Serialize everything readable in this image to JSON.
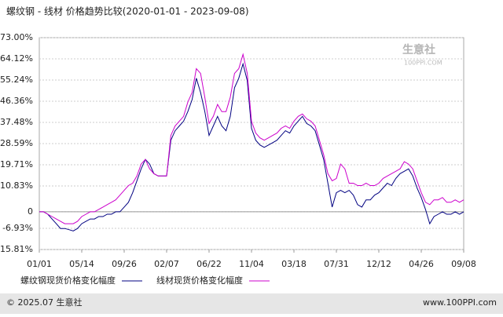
{
  "chart_data": {
    "type": "line",
    "title": "螺纹钢 - 线材 价格趋势比较(2020-01-01 - 2023-09-08)",
    "watermark": "生意社",
    "watermark_sub": "100PPI.COM",
    "footer_left": "© 2025.07 生意社",
    "footer_right": "www.100PPI.com",
    "categories": [
      "01/01",
      null,
      null,
      null,
      null,
      null,
      null,
      null,
      null,
      null,
      "05/14",
      null,
      null,
      null,
      null,
      null,
      null,
      null,
      null,
      null,
      "09/26",
      null,
      null,
      null,
      null,
      null,
      null,
      null,
      null,
      null,
      "02/07",
      null,
      null,
      null,
      null,
      null,
      null,
      null,
      null,
      null,
      "06/22",
      null,
      null,
      null,
      null,
      null,
      null,
      null,
      null,
      null,
      "11/04",
      null,
      null,
      null,
      null,
      null,
      null,
      null,
      null,
      null,
      "03/18",
      null,
      null,
      null,
      null,
      null,
      null,
      null,
      null,
      null,
      "07/31",
      null,
      null,
      null,
      null,
      null,
      null,
      null,
      null,
      null,
      "12/12",
      null,
      null,
      null,
      null,
      null,
      null,
      null,
      null,
      null,
      "04/26",
      null,
      null,
      null,
      null,
      null,
      null,
      null,
      null,
      null,
      "09/08"
    ],
    "series": [
      {
        "name": "螺纹钢现货价格变化幅度",
        "color": "#000080",
        "values": [
          0,
          0,
          -1,
          -3,
          -5,
          -7,
          -7,
          -7.5,
          -8,
          -7,
          -5,
          -4,
          -3,
          -3,
          -2,
          -2,
          -1,
          -1,
          0,
          0,
          2,
          4,
          8,
          13,
          18,
          22,
          20,
          16,
          15,
          15,
          15,
          30,
          34,
          36,
          38,
          42,
          47,
          56,
          50,
          42,
          32,
          36,
          40,
          36,
          34,
          40,
          52,
          56,
          62,
          55,
          35,
          30,
          28,
          27,
          28,
          29,
          30,
          32,
          34,
          33,
          36,
          38,
          40,
          37,
          36,
          34,
          28,
          22,
          12,
          2,
          8,
          9,
          8,
          9,
          7,
          3,
          2,
          5,
          5,
          7,
          8,
          10,
          12,
          11,
          14,
          16,
          17,
          18,
          15,
          10,
          6,
          1,
          -5,
          -2,
          -1,
          0,
          -1,
          -1,
          0,
          -1,
          0
        ]
      },
      {
        "name": "线材现货价格变化幅度",
        "color": "#cc00cc",
        "values": [
          0,
          0,
          -1,
          -2,
          -3,
          -4,
          -5,
          -5,
          -5,
          -4,
          -2,
          -1,
          0,
          0,
          1,
          2,
          3,
          4,
          5,
          7,
          9,
          11,
          12,
          15,
          20,
          22,
          18,
          16,
          15,
          15,
          15,
          32,
          36,
          38,
          40,
          46,
          50,
          60,
          58,
          48,
          37,
          40,
          45,
          42,
          42,
          48,
          58,
          60,
          66,
          58,
          38,
          33,
          31,
          30,
          31,
          32,
          33,
          35,
          36,
          35,
          38,
          40,
          41,
          39,
          38,
          36,
          30,
          24,
          16,
          13,
          14,
          20,
          18,
          12,
          12,
          11,
          11,
          12,
          11,
          11,
          12,
          14,
          15,
          16,
          17,
          18,
          21,
          20,
          18,
          13,
          8,
          4,
          3,
          5,
          5,
          6,
          4,
          4,
          5,
          4,
          5
        ]
      }
    ],
    "ylim": [
      -15.81,
      73.0
    ],
    "yticks": [
      {
        "value": -15.81,
        "label": "-15.81%"
      },
      {
        "value": -6.93,
        "label": "-6.93%"
      },
      0,
      {
        "value": 10.83,
        "label": "10.83%"
      },
      {
        "value": 19.71,
        "label": "19.71%"
      },
      {
        "value": 28.59,
        "label": "28.59%"
      },
      {
        "value": 37.48,
        "label": "37.48%"
      },
      {
        "value": 46.36,
        "label": "46.36%"
      },
      {
        "value": 55.24,
        "label": "55.24%"
      },
      {
        "value": 64.12,
        "label": "64.12%"
      },
      {
        "value": 73.0,
        "label": "73.00%"
      }
    ],
    "grid": true
  }
}
